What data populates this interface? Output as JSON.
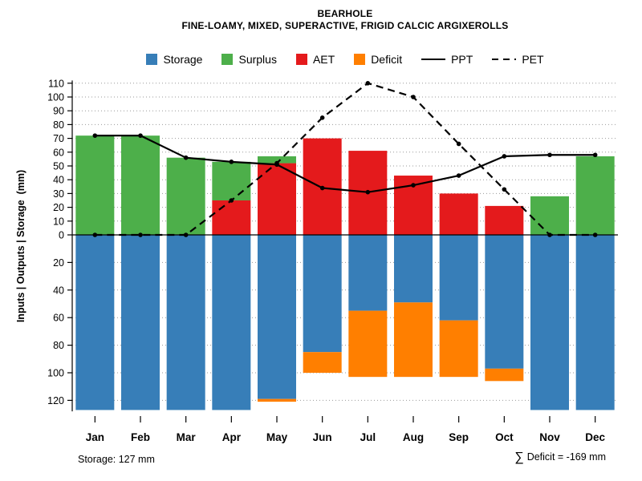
{
  "chart_data": {
    "type": "bar",
    "title": "BEARHOLE",
    "subtitle": "FINE-LOAMY, MIXED, SUPERACTIVE, FRIGID CALCIC ARGIXEROLLS",
    "categories": [
      "Jan",
      "Feb",
      "Mar",
      "Apr",
      "May",
      "Jun",
      "Jul",
      "Aug",
      "Sep",
      "Oct",
      "Nov",
      "Dec"
    ],
    "ylabel": "Inputs | Outputs | Storage  (mm)",
    "grid": true,
    "legend_position": "top",
    "y_axis": {
      "top_ticks": [
        0,
        10,
        20,
        30,
        40,
        50,
        60,
        70,
        80,
        90,
        100,
        110
      ],
      "bottom_ticks": [
        20,
        40,
        60,
        80,
        100,
        120
      ],
      "top_max": 110,
      "bottom_max": 130
    },
    "series": [
      {
        "name": "Storage",
        "kind": "bar",
        "direction": "down",
        "color": "#377eb8",
        "values": [
          127,
          127,
          127,
          127,
          119,
          85,
          55,
          49,
          62,
          97,
          127,
          127
        ]
      },
      {
        "name": "Surplus",
        "kind": "bar",
        "direction": "up",
        "color": "#4daf4a",
        "values": [
          72,
          72,
          56,
          28,
          5,
          0,
          0,
          0,
          0,
          0,
          28,
          57
        ]
      },
      {
        "name": "AET",
        "kind": "bar",
        "direction": "up",
        "color": "#e41a1c",
        "values": [
          0,
          0,
          0,
          25,
          52,
          70,
          61,
          43,
          30,
          21,
          0,
          0
        ]
      },
      {
        "name": "Deficit",
        "kind": "bar",
        "direction": "down",
        "color": "#ff7f00",
        "values": [
          0,
          0,
          0,
          0,
          2,
          15,
          48,
          54,
          41,
          9,
          0,
          0
        ]
      },
      {
        "name": "PPT",
        "kind": "line",
        "style": "solid",
        "color": "#000000",
        "values": [
          72,
          72,
          56,
          53,
          51,
          34,
          31,
          36,
          43,
          57,
          58,
          58
        ]
      },
      {
        "name": "PET",
        "kind": "line",
        "style": "dashed",
        "color": "#000000",
        "values": [
          0,
          0,
          0,
          25,
          52,
          85,
          110,
          100,
          66,
          33,
          0,
          0
        ]
      }
    ]
  },
  "footer": {
    "storage_note": "Storage: 127 mm",
    "sigma": "∑",
    "deficit_note": "Deficit = -169 mm"
  }
}
